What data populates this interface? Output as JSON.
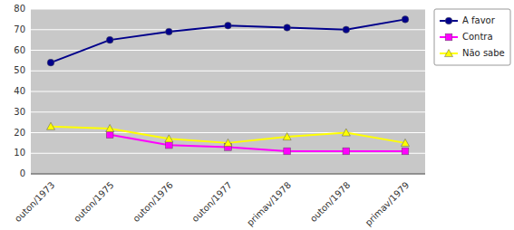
{
  "chart_data": {
    "type": "line",
    "categories": [
      "outon/1973",
      "outon/1975",
      "outon/1976",
      "outon/1977",
      "primav/1978",
      "outon/1978",
      "primav/1979"
    ],
    "series": [
      {
        "name": "A favor",
        "color": "#00008B",
        "marker": "circle",
        "values": [
          54,
          65,
          69,
          72,
          71,
          70,
          75
        ]
      },
      {
        "name": "Contra",
        "color": "#FF00FF",
        "marker": "square",
        "values": [
          null,
          19,
          14,
          13,
          11,
          11,
          11
        ]
      },
      {
        "name": "Não sabe",
        "color": "#FFFF00",
        "marker": "triangle",
        "values": [
          23,
          22,
          17,
          15,
          18,
          20,
          15
        ]
      }
    ],
    "ylim": [
      0,
      80
    ],
    "yticks": [
      0,
      10,
      20,
      30,
      40,
      50,
      60,
      70,
      80
    ],
    "grid": true,
    "legend": "upper right"
  }
}
